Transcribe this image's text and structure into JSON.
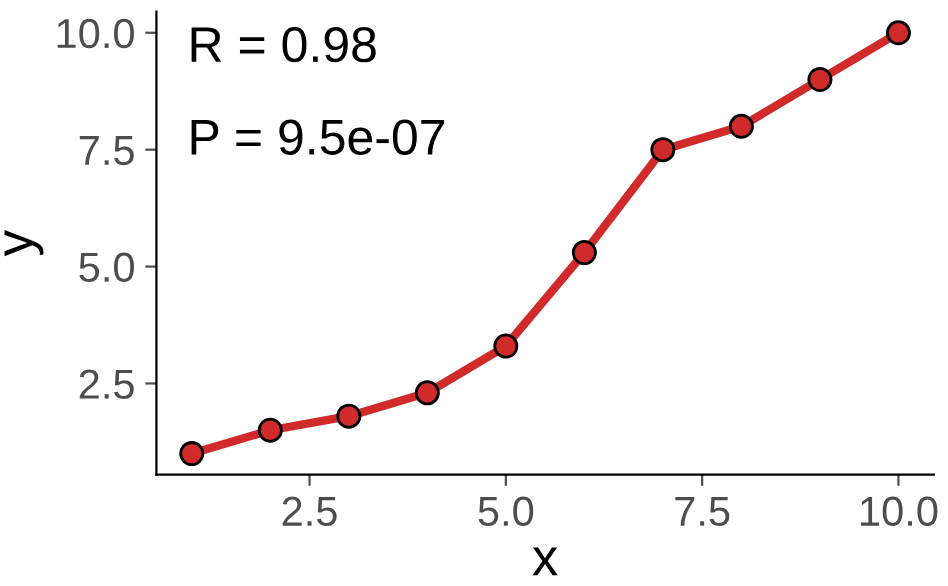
{
  "chart_data": {
    "type": "line",
    "xlabel": "x",
    "ylabel": "y",
    "x": [
      1,
      2,
      3,
      4,
      5,
      6,
      7,
      8,
      9,
      10
    ],
    "series": [
      {
        "color": "#d02a2a",
        "values": [
          1.0,
          1.5,
          1.8,
          2.3,
          3.3,
          5.3,
          7.5,
          8.0,
          9.0,
          10.0
        ]
      }
    ],
    "xlim": [
      0.55,
      10.45
    ],
    "ylim": [
      0.55,
      10.45
    ],
    "xticks": [
      {
        "value": 2.5,
        "label": "2.5"
      },
      {
        "value": 5,
        "label": "5.0"
      },
      {
        "value": 7.5,
        "label": "7.5"
      },
      {
        "value": 10,
        "label": "10.0"
      }
    ],
    "yticks": [
      {
        "value": 2.5,
        "label": "2.5"
      },
      {
        "value": 5,
        "label": "5.0"
      },
      {
        "value": 7.5,
        "label": "7.5"
      },
      {
        "value": 10,
        "label": "10.0"
      }
    ],
    "annotations": [
      "R = 0.98",
      "P = 9.5e-07"
    ],
    "marker": "circle",
    "line_style": "solid",
    "grid": false,
    "legend": false
  }
}
